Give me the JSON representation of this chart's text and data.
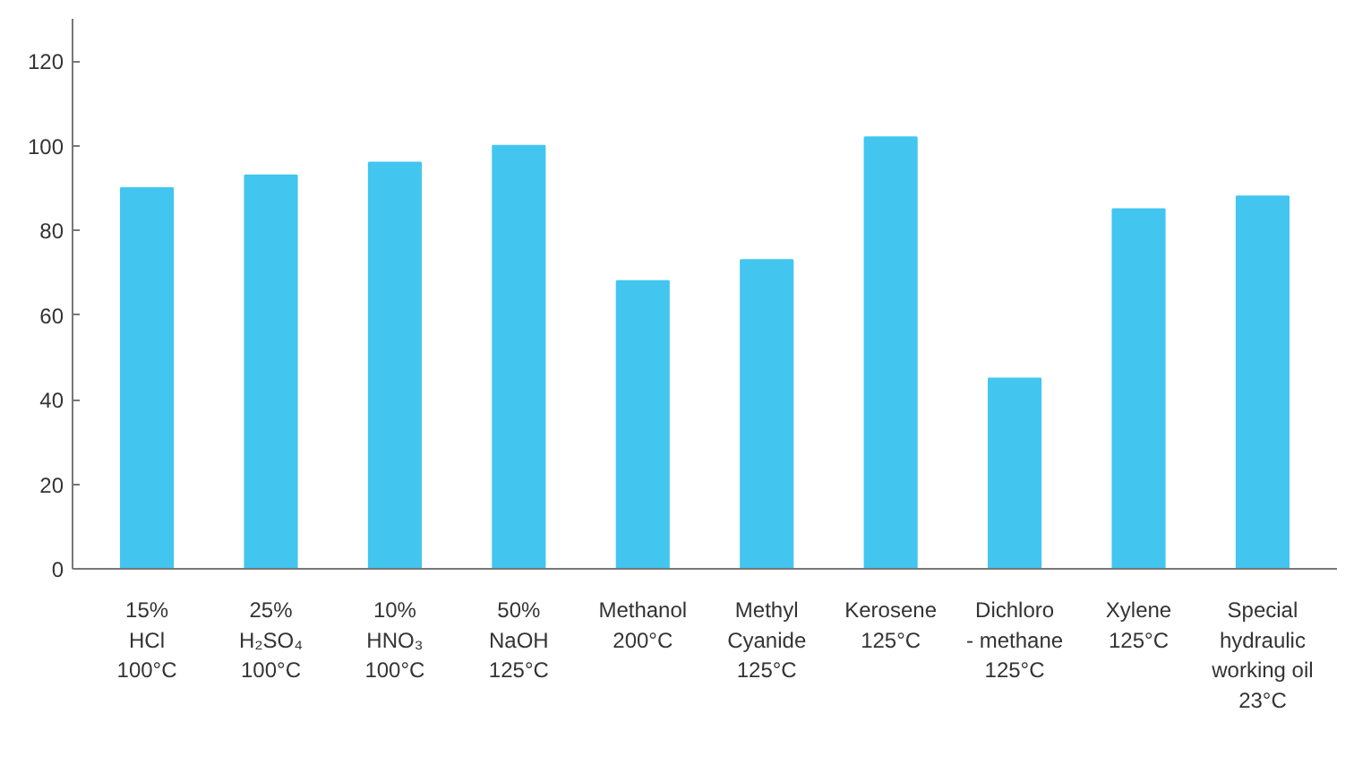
{
  "chart_data": {
    "type": "bar",
    "categories": [
      "15%\nHCl\n100°C",
      "25%\nH₂SO₄\n100°C",
      "10%\nHNO₃\n100°C",
      "50%\nNaOH\n125°C",
      "Methanol\n200°C",
      "Methyl\nCyanide\n125°C",
      "Kerosene\n125°C",
      "Dichloro\n- methane\n125°C",
      "Xylene\n125°C",
      "Special\nhydraulic\nworking oil\n23°C"
    ],
    "values": [
      90,
      93,
      96,
      100,
      68,
      73,
      102,
      45,
      85,
      88
    ],
    "color": "#42c6f0",
    "ylim": [
      0,
      130
    ],
    "yticks": [
      0,
      20,
      40,
      60,
      80,
      100,
      120
    ],
    "grid": false
  }
}
